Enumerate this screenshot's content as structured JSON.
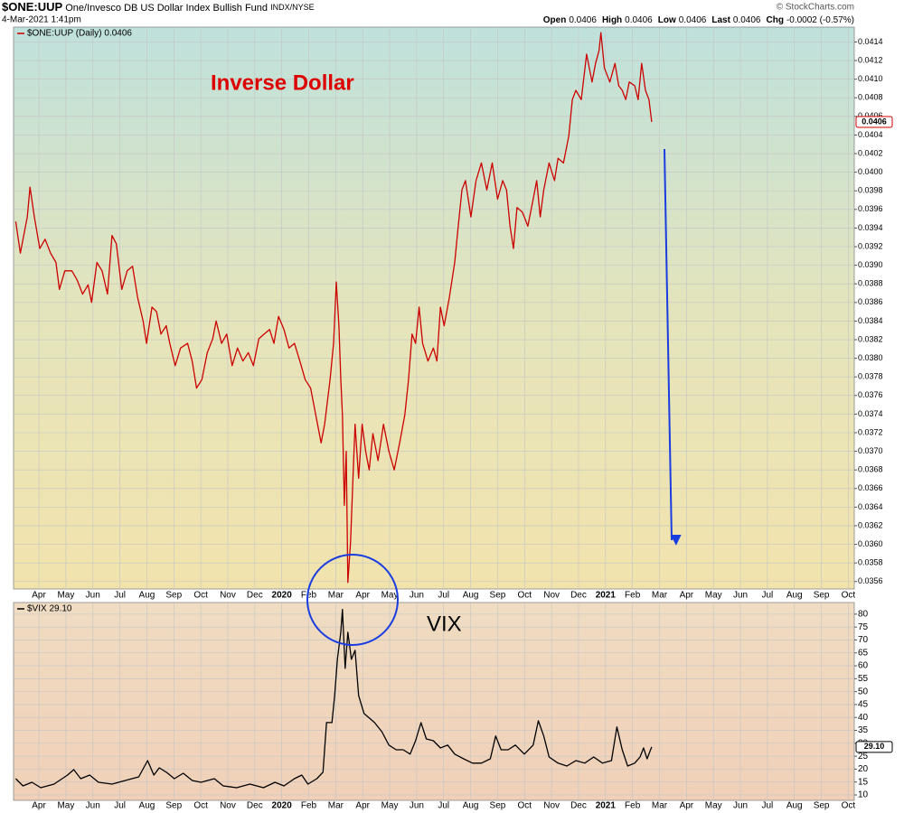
{
  "header": {
    "symbol": "$ONE:UUP",
    "name": "One/Invesco DB US Dollar Index Bullish Fund",
    "exchange": "INDX/NYSE",
    "date": "4-Mar-2021 1:41pm",
    "source": "© StockCharts.com",
    "quote": [
      {
        "label": "Open",
        "value": "0.0406"
      },
      {
        "label": "High",
        "value": "0.0406"
      },
      {
        "label": "Low",
        "value": "0.0406"
      },
      {
        "label": "Last",
        "value": "0.0406"
      },
      {
        "label": "Chg",
        "value": "-0.0002 (-0.57%)"
      }
    ]
  },
  "chart_data": [
    {
      "type": "line",
      "annotation": "Inverse Dollar",
      "last_value_label": "0.0406",
      "xlim": [
        -0.94,
        30.22
      ],
      "xticks": [
        {
          "value": 0,
          "label": "Apr"
        },
        {
          "value": 1,
          "label": "May"
        },
        {
          "value": 2,
          "label": "Jun"
        },
        {
          "value": 3,
          "label": "Jul"
        },
        {
          "value": 4,
          "label": "Aug"
        },
        {
          "value": 5,
          "label": "Sep"
        },
        {
          "value": 6,
          "label": "Oct"
        },
        {
          "value": 7,
          "label": "Nov"
        },
        {
          "value": 8,
          "label": "Dec"
        },
        {
          "value": 9,
          "label": "2020"
        },
        {
          "value": 10,
          "label": "Feb"
        },
        {
          "value": 11,
          "label": "Mar"
        },
        {
          "value": 12,
          "label": "Apr"
        },
        {
          "value": 13,
          "label": "May"
        },
        {
          "value": 14,
          "label": "Jun"
        },
        {
          "value": 15,
          "label": "Jul"
        },
        {
          "value": 16,
          "label": "Aug"
        },
        {
          "value": 17,
          "label": "Sep"
        },
        {
          "value": 18,
          "label": "Oct"
        },
        {
          "value": 19,
          "label": "Nov"
        },
        {
          "value": 20,
          "label": "Dec"
        },
        {
          "value": 21,
          "label": "2021"
        },
        {
          "value": 22,
          "label": "Feb"
        },
        {
          "value": 23,
          "label": "Mar"
        },
        {
          "value": 24,
          "label": "Apr"
        },
        {
          "value": 25,
          "label": "May"
        },
        {
          "value": 26,
          "label": "Jun"
        },
        {
          "value": 27,
          "label": "Jul"
        },
        {
          "value": 28,
          "label": "Aug"
        },
        {
          "value": 29,
          "label": "Sep"
        },
        {
          "value": 30,
          "label": "Oct"
        }
      ],
      "ylim": [
        0.03552,
        0.04156
      ],
      "yticks": [
        0.0356,
        0.0358,
        {
          "value": 0.036,
          "label": "0.0360"
        },
        0.0362,
        0.0364,
        0.0366,
        0.0368,
        {
          "value": 0.037,
          "label": "0.0370"
        },
        0.0372,
        0.0374,
        0.0376,
        0.0378,
        {
          "value": 0.038,
          "label": "0.0380"
        },
        0.0382,
        0.0384,
        0.0386,
        0.0388,
        {
          "value": 0.039,
          "label": "0.0390"
        },
        0.0392,
        0.0394,
        0.0396,
        0.0398,
        {
          "value": 0.04,
          "label": "0.0400"
        },
        0.0402,
        0.0404,
        0.0406,
        0.0408,
        {
          "value": 0.041,
          "label": "0.0410"
        },
        0.0412,
        0.0414
      ],
      "grid": true,
      "series": [
        {
          "name": "$ONE:UUP (Daily) 0.0406",
          "color": "#cc0000",
          "x": [
            -0.86,
            -0.69,
            -0.43,
            -0.33,
            -0.17,
            0.03,
            0.23,
            0.43,
            0.63,
            0.76,
            0.96,
            1.22,
            1.42,
            1.62,
            1.82,
            1.95,
            2.15,
            2.34,
            2.54,
            2.71,
            2.87,
            3.07,
            3.27,
            3.47,
            3.66,
            3.86,
            3.99,
            4.19,
            4.36,
            4.52,
            4.72,
            4.85,
            5.05,
            5.25,
            5.51,
            5.68,
            5.84,
            6.04,
            6.24,
            6.44,
            6.57,
            6.77,
            6.96,
            7.16,
            7.36,
            7.56,
            7.76,
            7.95,
            8.15,
            8.35,
            8.55,
            8.71,
            8.88,
            9.08,
            9.27,
            9.47,
            9.67,
            9.87,
            10.07,
            10.26,
            10.46,
            10.59,
            10.79,
            10.92,
            11.02,
            11.12,
            11.19,
            11.25,
            11.32,
            11.39,
            11.45,
            11.55,
            11.65,
            11.72,
            11.85,
            11.98,
            12.11,
            12.24,
            12.38,
            12.57,
            12.77,
            12.97,
            13.17,
            13.37,
            13.56,
            13.7,
            13.83,
            13.96,
            14.09,
            14.22,
            14.42,
            14.62,
            14.75,
            14.88,
            15.02,
            15.21,
            15.41,
            15.54,
            15.68,
            15.81,
            16.01,
            16.2,
            16.4,
            16.6,
            16.8,
            17.0,
            17.19,
            17.33,
            17.46,
            17.59,
            17.72,
            17.92,
            18.12,
            18.32,
            18.45,
            18.58,
            18.71,
            18.91,
            19.11,
            19.24,
            19.44,
            19.64,
            19.77,
            19.9,
            20.1,
            20.3,
            20.5,
            20.63,
            20.76,
            20.83,
            20.96,
            21.16,
            21.35,
            21.49,
            21.62,
            21.75,
            21.88,
            22.08,
            22.21,
            22.34,
            22.48,
            22.61,
            22.71
          ],
          "values": [
            0.03947,
            0.03913,
            0.03952,
            0.03984,
            0.03952,
            0.03918,
            0.03928,
            0.03913,
            0.03903,
            0.03874,
            0.03894,
            0.03894,
            0.03884,
            0.03869,
            0.03879,
            0.0386,
            0.03903,
            0.03894,
            0.03869,
            0.03932,
            0.03923,
            0.03874,
            0.03894,
            0.03899,
            0.03865,
            0.0384,
            0.03816,
            0.03855,
            0.0385,
            0.03826,
            0.03835,
            0.03816,
            0.03792,
            0.03811,
            0.03816,
            0.03797,
            0.03768,
            0.03777,
            0.03806,
            0.03821,
            0.0384,
            0.03816,
            0.03826,
            0.03792,
            0.03811,
            0.03797,
            0.03806,
            0.03792,
            0.03821,
            0.03826,
            0.03831,
            0.03816,
            0.03845,
            0.03831,
            0.03811,
            0.03816,
            0.03797,
            0.03777,
            0.03768,
            0.03739,
            0.03709,
            0.03729,
            0.03777,
            0.03816,
            0.03882,
            0.03835,
            0.03777,
            0.03739,
            0.03642,
            0.037,
            0.03559,
            0.03603,
            0.0368,
            0.03729,
            0.03671,
            0.03729,
            0.037,
            0.0368,
            0.03719,
            0.0369,
            0.03729,
            0.037,
            0.0368,
            0.03709,
            0.03739,
            0.03777,
            0.03826,
            0.03816,
            0.03855,
            0.03816,
            0.03797,
            0.03811,
            0.03797,
            0.03855,
            0.03835,
            0.03865,
            0.03903,
            0.03942,
            0.03981,
            0.03991,
            0.03952,
            0.03991,
            0.0401,
            0.03981,
            0.0401,
            0.03971,
            0.03991,
            0.03981,
            0.03942,
            0.03918,
            0.03962,
            0.03957,
            0.03942,
            0.03971,
            0.03991,
            0.03952,
            0.03981,
            0.0401,
            0.03991,
            0.04015,
            0.0401,
            0.04039,
            0.04078,
            0.04088,
            0.04078,
            0.04127,
            0.04097,
            0.04117,
            0.04131,
            0.0415,
            0.04112,
            0.04097,
            0.04117,
            0.04093,
            0.04088,
            0.04078,
            0.04097,
            0.04093,
            0.04078,
            0.04117,
            0.04088,
            0.04078,
            0.04054
          ]
        }
      ]
    },
    {
      "type": "line",
      "annotation": "VIX",
      "last_value_label": "29.10",
      "xlim": [
        -0.94,
        30.22
      ],
      "xticks": [
        {
          "value": 0,
          "label": "Apr"
        },
        {
          "value": 1,
          "label": "May"
        },
        {
          "value": 2,
          "label": "Jun"
        },
        {
          "value": 3,
          "label": "Jul"
        },
        {
          "value": 4,
          "label": "Aug"
        },
        {
          "value": 5,
          "label": "Sep"
        },
        {
          "value": 6,
          "label": "Oct"
        },
        {
          "value": 7,
          "label": "Nov"
        },
        {
          "value": 8,
          "label": "Dec"
        },
        {
          "value": 9,
          "label": "2020"
        },
        {
          "value": 10,
          "label": "Feb"
        },
        {
          "value": 11,
          "label": "Mar"
        },
        {
          "value": 12,
          "label": "Apr"
        },
        {
          "value": 13,
          "label": "May"
        },
        {
          "value": 14,
          "label": "Jun"
        },
        {
          "value": 15,
          "label": "Jul"
        },
        {
          "value": 16,
          "label": "Aug"
        },
        {
          "value": 17,
          "label": "Sep"
        },
        {
          "value": 18,
          "label": "Oct"
        },
        {
          "value": 19,
          "label": "Nov"
        },
        {
          "value": 20,
          "label": "Dec"
        },
        {
          "value": 21,
          "label": "2021"
        },
        {
          "value": 22,
          "label": "Feb"
        },
        {
          "value": 23,
          "label": "Mar"
        },
        {
          "value": 24,
          "label": "Apr"
        },
        {
          "value": 25,
          "label": "May"
        },
        {
          "value": 26,
          "label": "Jun"
        },
        {
          "value": 27,
          "label": "Jul"
        },
        {
          "value": 28,
          "label": "Aug"
        },
        {
          "value": 29,
          "label": "Sep"
        },
        {
          "value": 30,
          "label": "Oct"
        }
      ],
      "ylim": [
        7.9,
        84.5
      ],
      "yticks": [
        10,
        15,
        20,
        25,
        30,
        35,
        40,
        45,
        50,
        55,
        60,
        65,
        70,
        75,
        80
      ],
      "grid": true,
      "series": [
        {
          "name": "$VIX 29.10",
          "color": "#000000",
          "x": [
            -0.86,
            -0.59,
            -0.26,
            0.07,
            0.56,
            1.06,
            1.29,
            1.55,
            1.88,
            2.21,
            2.71,
            3.2,
            3.7,
            4.03,
            4.26,
            4.46,
            4.72,
            5.02,
            5.35,
            5.68,
            6.01,
            6.5,
            6.83,
            7.33,
            7.82,
            8.32,
            8.75,
            9.08,
            9.47,
            9.74,
            9.97,
            10.3,
            10.53,
            10.66,
            10.86,
            10.96,
            11.06,
            11.19,
            11.25,
            11.35,
            11.45,
            11.58,
            11.72,
            11.85,
            12.05,
            12.24,
            12.44,
            12.71,
            12.97,
            13.24,
            13.5,
            13.76,
            13.96,
            14.16,
            14.36,
            14.62,
            14.88,
            15.15,
            15.41,
            15.74,
            16.07,
            16.4,
            16.73,
            16.93,
            17.13,
            17.39,
            17.66,
            17.99,
            18.32,
            18.51,
            18.71,
            18.91,
            19.24,
            19.57,
            19.9,
            20.23,
            20.56,
            20.89,
            21.22,
            21.42,
            21.62,
            21.82,
            22.08,
            22.28,
            22.41,
            22.54,
            22.71
          ],
          "values": [
            16.3,
            13.5,
            14.9,
            12.8,
            14.2,
            17.7,
            19.8,
            16.3,
            17.7,
            14.9,
            14.2,
            15.6,
            17.0,
            23.3,
            17.7,
            20.5,
            18.8,
            16.3,
            18.4,
            15.6,
            14.9,
            16.3,
            13.5,
            12.8,
            14.2,
            12.8,
            14.9,
            13.5,
            16.3,
            17.7,
            14.2,
            16.3,
            18.8,
            38.0,
            38.0,
            48.5,
            62.5,
            73.0,
            81.8,
            59.0,
            73.0,
            62.5,
            66.0,
            48.5,
            41.5,
            39.8,
            38.0,
            34.5,
            29.3,
            27.5,
            27.5,
            25.8,
            31.0,
            38.0,
            31.7,
            31.0,
            28.2,
            29.3,
            25.8,
            24.0,
            22.3,
            22.3,
            24.0,
            32.8,
            27.5,
            27.5,
            29.3,
            25.8,
            29.3,
            38.7,
            32.8,
            24.7,
            22.3,
            21.2,
            23.3,
            22.3,
            24.7,
            22.3,
            23.3,
            36.3,
            27.5,
            21.2,
            22.3,
            24.7,
            28.2,
            24.0,
            28.6
          ]
        }
      ]
    }
  ]
}
